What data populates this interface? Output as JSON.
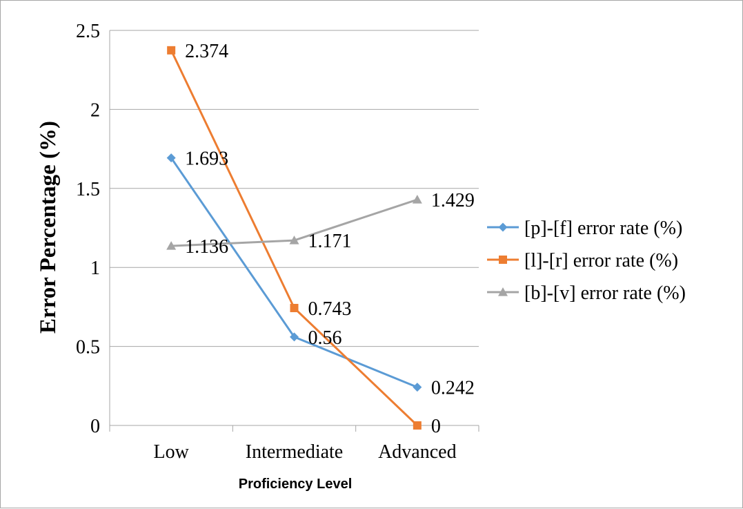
{
  "chart_data": {
    "type": "line",
    "title": "",
    "xlabel": "Proficiency Level",
    "ylabel": "Error Percentage (%)",
    "categories": [
      "Low",
      "Intermediate",
      "Advanced"
    ],
    "ylim": [
      0,
      2.5
    ],
    "yticks": [
      "0",
      "0.5",
      "1",
      "1.5",
      "2",
      "2.5"
    ],
    "grid": true,
    "legend_position": "right",
    "series": [
      {
        "name": "[p]-[f] error rate (%)",
        "values": [
          1.693,
          0.56,
          0.242
        ],
        "labels": [
          "1.693",
          "0.56",
          "0.242"
        ],
        "color": "#5b9bd5",
        "marker": "diamond"
      },
      {
        "name": "[l]-[r] error rate (%)",
        "values": [
          2.374,
          0.743,
          0
        ],
        "labels": [
          "2.374",
          "0.743",
          "0"
        ],
        "color": "#ed7d31",
        "marker": "square"
      },
      {
        "name": "[b]-[v] error rate (%)",
        "values": [
          1.136,
          1.171,
          1.429
        ],
        "labels": [
          "1.136",
          "1.171",
          "1.429"
        ],
        "color": "#a5a5a5",
        "marker": "triangle"
      }
    ]
  }
}
